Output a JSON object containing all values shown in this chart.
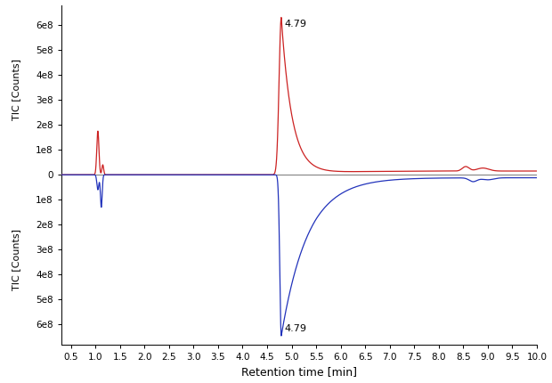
{
  "title": "",
  "xlabel": "Retention time [min]",
  "ylabel_top": "TIC [Counts]",
  "ylabel_bottom": "TIC [Counts]",
  "xlim": [
    0.3,
    10.0
  ],
  "ylim_top": 680000000.0,
  "ylim_bottom": -680000000.0,
  "peak_label": "4.79",
  "red_color": "#cc2222",
  "blue_color": "#2233bb",
  "zero_line_color": "#777777",
  "background_color": "#ffffff",
  "annotation_fontsize": 8,
  "xticks": [
    0.5,
    1.0,
    1.5,
    2.0,
    2.5,
    3.0,
    3.5,
    4.0,
    4.5,
    5.0,
    5.5,
    6.0,
    6.5,
    7.0,
    7.5,
    8.0,
    8.5,
    9.0,
    9.5,
    10.0
  ],
  "ytick_vals": [
    600000000.0,
    500000000.0,
    400000000.0,
    300000000.0,
    200000000.0,
    100000000.0,
    0,
    -100000000.0,
    -200000000.0,
    -300000000.0,
    -400000000.0,
    -500000000.0,
    -600000000.0
  ],
  "ytick_labels": [
    "6e8",
    "5e8",
    "4e8",
    "3e8",
    "2e8",
    "1e8",
    "0",
    "1e8",
    "2e8",
    "3e8",
    "4e8",
    "5e8",
    "6e8"
  ]
}
